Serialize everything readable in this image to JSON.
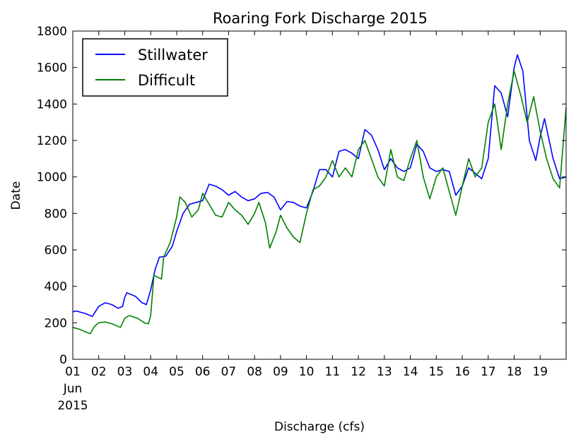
{
  "chart_data": {
    "type": "line",
    "title": "Roaring Fork Discharge 2015",
    "xlabel": "Discharge (cfs)",
    "ylabel": "Date",
    "x_domain": [
      "2015-06-01",
      "2015-06-20"
    ],
    "ylim": [
      0,
      1800
    ],
    "y_ticks": [
      0,
      200,
      400,
      600,
      800,
      1000,
      1200,
      1400,
      1600,
      1800
    ],
    "x_ticks": [
      {
        "date": "2015-06-01",
        "label": "01"
      },
      {
        "date": "2015-06-02",
        "label": "02"
      },
      {
        "date": "2015-06-03",
        "label": "03"
      },
      {
        "date": "2015-06-04",
        "label": "04"
      },
      {
        "date": "2015-06-05",
        "label": "05"
      },
      {
        "date": "2015-06-06",
        "label": "06"
      },
      {
        "date": "2015-06-07",
        "label": "07"
      },
      {
        "date": "2015-06-08",
        "label": "08"
      },
      {
        "date": "2015-06-09",
        "label": "09"
      },
      {
        "date": "2015-06-10",
        "label": "10"
      },
      {
        "date": "2015-06-11",
        "label": "11"
      },
      {
        "date": "2015-06-12",
        "label": "12"
      },
      {
        "date": "2015-06-13",
        "label": "13"
      },
      {
        "date": "2015-06-14",
        "label": "14"
      },
      {
        "date": "2015-06-15",
        "label": "15"
      },
      {
        "date": "2015-06-16",
        "label": "16"
      },
      {
        "date": "2015-06-17",
        "label": "17"
      },
      {
        "date": "2015-06-18",
        "label": "18"
      },
      {
        "date": "2015-06-19",
        "label": "19"
      }
    ],
    "x_month_label": "Jun",
    "x_year_label": "2015",
    "legend_position": "top-left",
    "grid": false,
    "series": [
      {
        "name": "Stillwater",
        "color": "#0000ff",
        "points": [
          [
            "2015-06-01 00:00",
            260
          ],
          [
            "2015-06-01 03:00",
            265
          ],
          [
            "2015-06-01 12:00",
            250
          ],
          [
            "2015-06-01 18:00",
            235
          ],
          [
            "2015-06-02 00:00",
            290
          ],
          [
            "2015-06-02 06:00",
            310
          ],
          [
            "2015-06-02 12:00",
            300
          ],
          [
            "2015-06-02 18:00",
            280
          ],
          [
            "2015-06-02 22:00",
            290
          ],
          [
            "2015-06-03 00:00",
            340
          ],
          [
            "2015-06-03 02:00",
            365
          ],
          [
            "2015-06-03 10:00",
            345
          ],
          [
            "2015-06-03 16:00",
            310
          ],
          [
            "2015-06-03 20:00",
            300
          ],
          [
            "2015-06-04 00:00",
            380
          ],
          [
            "2015-06-04 04:00",
            490
          ],
          [
            "2015-06-04 08:00",
            560
          ],
          [
            "2015-06-04 14:00",
            565
          ],
          [
            "2015-06-04 20:00",
            620
          ],
          [
            "2015-06-05 00:00",
            700
          ],
          [
            "2015-06-05 06:00",
            800
          ],
          [
            "2015-06-05 12:00",
            850
          ],
          [
            "2015-06-05 18:00",
            860
          ],
          [
            "2015-06-06 00:00",
            870
          ],
          [
            "2015-06-06 06:00",
            960
          ],
          [
            "2015-06-06 12:00",
            950
          ],
          [
            "2015-06-06 18:00",
            930
          ],
          [
            "2015-06-07 00:00",
            900
          ],
          [
            "2015-06-07 06:00",
            920
          ],
          [
            "2015-06-07 12:00",
            890
          ],
          [
            "2015-06-07 18:00",
            870
          ],
          [
            "2015-06-08 00:00",
            880
          ],
          [
            "2015-06-08 06:00",
            910
          ],
          [
            "2015-06-08 12:00",
            915
          ],
          [
            "2015-06-08 18:00",
            890
          ],
          [
            "2015-06-09 00:00",
            820
          ],
          [
            "2015-06-09 06:00",
            865
          ],
          [
            "2015-06-09 12:00",
            860
          ],
          [
            "2015-06-09 18:00",
            840
          ],
          [
            "2015-06-10 00:00",
            830
          ],
          [
            "2015-06-10 06:00",
            920
          ],
          [
            "2015-06-10 12:00",
            1040
          ],
          [
            "2015-06-10 18:00",
            1040
          ],
          [
            "2015-06-11 00:00",
            1000
          ],
          [
            "2015-06-11 06:00",
            1140
          ],
          [
            "2015-06-11 12:00",
            1150
          ],
          [
            "2015-06-11 18:00",
            1130
          ],
          [
            "2015-06-12 00:00",
            1100
          ],
          [
            "2015-06-12 06:00",
            1260
          ],
          [
            "2015-06-12 12:00",
            1230
          ],
          [
            "2015-06-12 18:00",
            1150
          ],
          [
            "2015-06-13 00:00",
            1040
          ],
          [
            "2015-06-13 06:00",
            1100
          ],
          [
            "2015-06-13 12:00",
            1050
          ],
          [
            "2015-06-13 18:00",
            1030
          ],
          [
            "2015-06-14 00:00",
            1050
          ],
          [
            "2015-06-14 06:00",
            1180
          ],
          [
            "2015-06-14 12:00",
            1140
          ],
          [
            "2015-06-14 18:00",
            1050
          ],
          [
            "2015-06-15 00:00",
            1030
          ],
          [
            "2015-06-15 06:00",
            1040
          ],
          [
            "2015-06-15 12:00",
            1030
          ],
          [
            "2015-06-15 18:00",
            900
          ],
          [
            "2015-06-16 00:00",
            950
          ],
          [
            "2015-06-16 06:00",
            1050
          ],
          [
            "2015-06-16 12:00",
            1020
          ],
          [
            "2015-06-16 18:00",
            990
          ],
          [
            "2015-06-17 00:00",
            1100
          ],
          [
            "2015-06-17 06:00",
            1500
          ],
          [
            "2015-06-17 12:00",
            1460
          ],
          [
            "2015-06-17 18:00",
            1330
          ],
          [
            "2015-06-18 00:00",
            1600
          ],
          [
            "2015-06-18 03:00",
            1670
          ],
          [
            "2015-06-18 08:00",
            1580
          ],
          [
            "2015-06-18 14:00",
            1200
          ],
          [
            "2015-06-18 20:00",
            1090
          ],
          [
            "2015-06-19 00:00",
            1220
          ],
          [
            "2015-06-19 04:00",
            1320
          ],
          [
            "2015-06-19 12:00",
            1100
          ],
          [
            "2015-06-19 18:00",
            990
          ],
          [
            "2015-06-20 00:00",
            1000
          ]
        ]
      },
      {
        "name": "Difficult",
        "color": "#008000",
        "points": [
          [
            "2015-06-01 00:00",
            175
          ],
          [
            "2015-06-01 06:00",
            165
          ],
          [
            "2015-06-01 12:00",
            150
          ],
          [
            "2015-06-01 16:00",
            140
          ],
          [
            "2015-06-01 20:00",
            180
          ],
          [
            "2015-06-02 00:00",
            200
          ],
          [
            "2015-06-02 06:00",
            205
          ],
          [
            "2015-06-02 12:00",
            195
          ],
          [
            "2015-06-02 20:00",
            175
          ],
          [
            "2015-06-03 00:00",
            225
          ],
          [
            "2015-06-03 04:00",
            240
          ],
          [
            "2015-06-03 12:00",
            225
          ],
          [
            "2015-06-03 18:00",
            200
          ],
          [
            "2015-06-03 22:00",
            195
          ],
          [
            "2015-06-04 00:00",
            240
          ],
          [
            "2015-06-04 03:00",
            460
          ],
          [
            "2015-06-04 10:00",
            440
          ],
          [
            "2015-06-04 12:00",
            560
          ],
          [
            "2015-06-04 18:00",
            640
          ],
          [
            "2015-06-05 00:00",
            780
          ],
          [
            "2015-06-05 03:00",
            890
          ],
          [
            "2015-06-05 08:00",
            860
          ],
          [
            "2015-06-05 14:00",
            780
          ],
          [
            "2015-06-05 20:00",
            820
          ],
          [
            "2015-06-06 00:00",
            910
          ],
          [
            "2015-06-06 06:00",
            850
          ],
          [
            "2015-06-06 12:00",
            790
          ],
          [
            "2015-06-06 18:00",
            780
          ],
          [
            "2015-06-07 00:00",
            860
          ],
          [
            "2015-06-07 06:00",
            820
          ],
          [
            "2015-06-07 12:00",
            790
          ],
          [
            "2015-06-07 18:00",
            740
          ],
          [
            "2015-06-08 00:00",
            800
          ],
          [
            "2015-06-08 04:00",
            860
          ],
          [
            "2015-06-08 10:00",
            750
          ],
          [
            "2015-06-08 14:00",
            610
          ],
          [
            "2015-06-08 20:00",
            700
          ],
          [
            "2015-06-09 00:00",
            790
          ],
          [
            "2015-06-09 06:00",
            720
          ],
          [
            "2015-06-09 12:00",
            670
          ],
          [
            "2015-06-09 18:00",
            640
          ],
          [
            "2015-06-10 00:00",
            800
          ],
          [
            "2015-06-10 06:00",
            930
          ],
          [
            "2015-06-10 12:00",
            950
          ],
          [
            "2015-06-10 18:00",
            1000
          ],
          [
            "2015-06-11 00:00",
            1090
          ],
          [
            "2015-06-11 06:00",
            1000
          ],
          [
            "2015-06-11 12:00",
            1050
          ],
          [
            "2015-06-11 18:00",
            1000
          ],
          [
            "2015-06-12 00:00",
            1150
          ],
          [
            "2015-06-12 06:00",
            1200
          ],
          [
            "2015-06-12 12:00",
            1100
          ],
          [
            "2015-06-12 18:00",
            1000
          ],
          [
            "2015-06-13 00:00",
            950
          ],
          [
            "2015-06-13 06:00",
            1150
          ],
          [
            "2015-06-13 12:00",
            1000
          ],
          [
            "2015-06-13 18:00",
            980
          ],
          [
            "2015-06-14 00:00",
            1100
          ],
          [
            "2015-06-14 06:00",
            1200
          ],
          [
            "2015-06-14 12:00",
            1000
          ],
          [
            "2015-06-14 18:00",
            880
          ],
          [
            "2015-06-15 00:00",
            1000
          ],
          [
            "2015-06-15 06:00",
            1050
          ],
          [
            "2015-06-15 12:00",
            920
          ],
          [
            "2015-06-15 18:00",
            790
          ],
          [
            "2015-06-16 00:00",
            950
          ],
          [
            "2015-06-16 06:00",
            1100
          ],
          [
            "2015-06-16 12:00",
            1000
          ],
          [
            "2015-06-16 18:00",
            1050
          ],
          [
            "2015-06-17 00:00",
            1300
          ],
          [
            "2015-06-17 06:00",
            1400
          ],
          [
            "2015-06-17 12:00",
            1150
          ],
          [
            "2015-06-17 18:00",
            1400
          ],
          [
            "2015-06-18 00:00",
            1580
          ],
          [
            "2015-06-18 06:00",
            1450
          ],
          [
            "2015-06-18 12:00",
            1300
          ],
          [
            "2015-06-18 18:00",
            1440
          ],
          [
            "2015-06-19 00:00",
            1250
          ],
          [
            "2015-06-19 06:00",
            1100
          ],
          [
            "2015-06-19 12:00",
            990
          ],
          [
            "2015-06-19 18:00",
            940
          ],
          [
            "2015-06-20 00:00",
            1380
          ]
        ]
      }
    ]
  }
}
